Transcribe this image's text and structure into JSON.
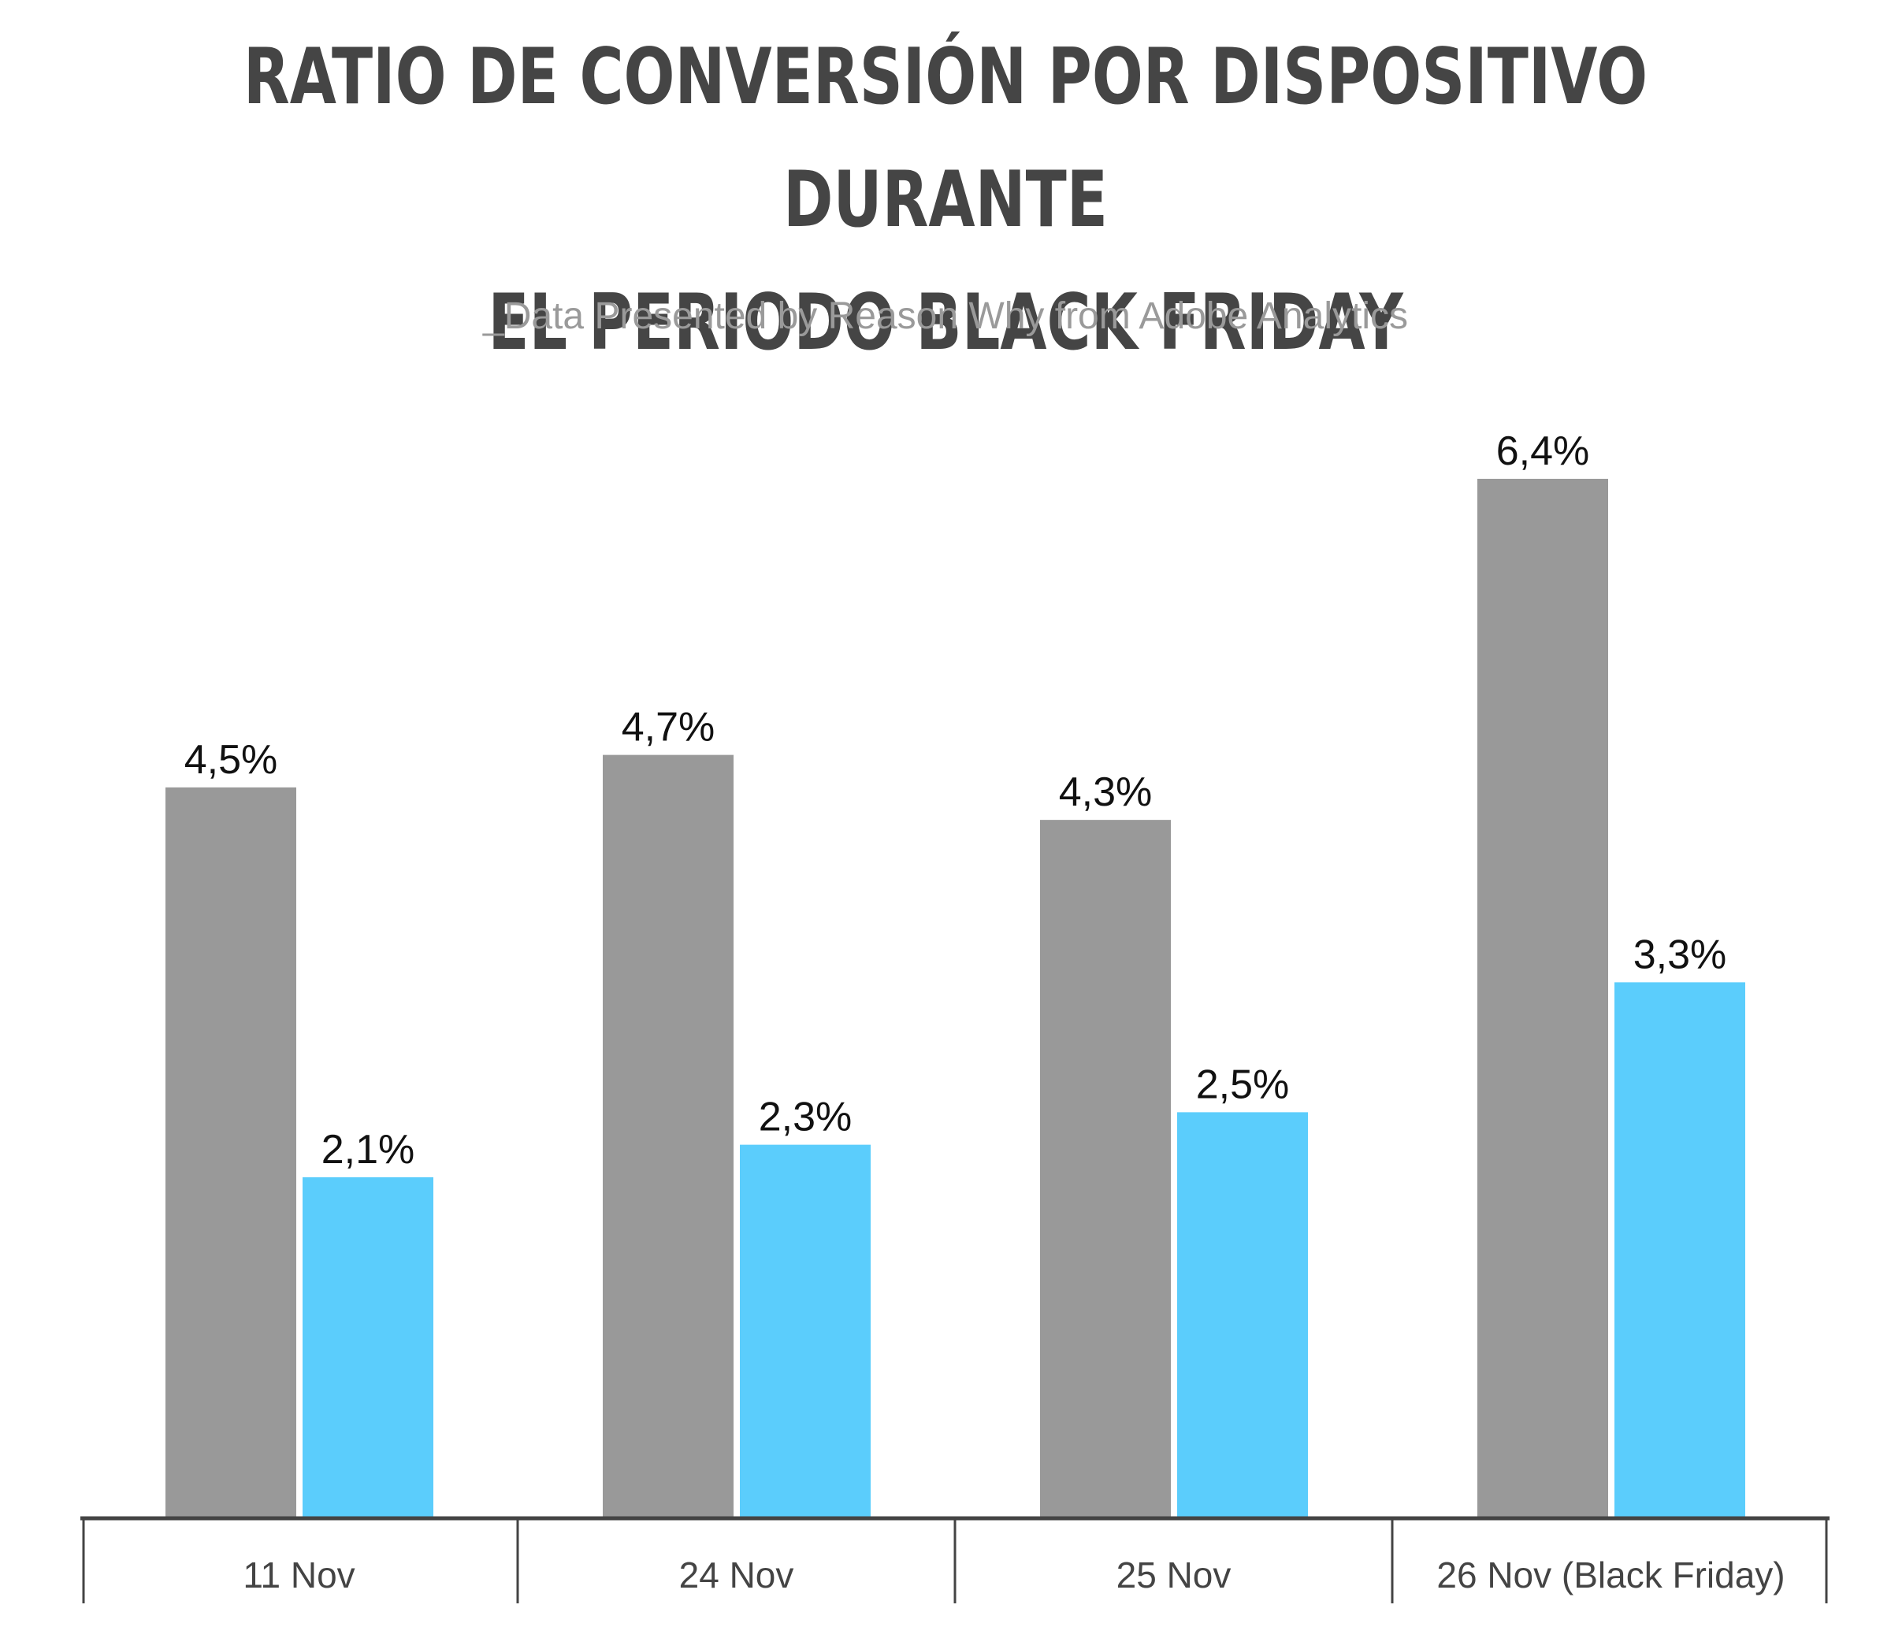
{
  "chart_data": {
    "type": "bar",
    "title": "RATIO DE CONVERSIÓN POR DISPOSITIVO DURANTE EL PERIODO BLACK FRIDAY",
    "subtitle": "_Data Presented by Reason Why from Adobe Analytics",
    "categories": [
      "11 Nov",
      "24 Nov",
      "25 Nov",
      "26 Nov (Black Friday)"
    ],
    "series": [
      {
        "values": [
          4.5,
          4.7,
          4.3,
          6.4
        ],
        "labels": [
          "4,5%",
          "4,7%",
          "4,3%",
          "6,4%"
        ],
        "color": "#999999"
      },
      {
        "values": [
          2.1,
          2.3,
          2.5,
          3.3
        ],
        "labels": [
          "2,1%",
          "2,3%",
          "2,5%",
          "3,3%"
        ],
        "color": "#5bcdfc"
      }
    ],
    "ylim": [
      0,
      6.4
    ],
    "grid": false,
    "legend": "none",
    "axis_color": "#444444"
  }
}
